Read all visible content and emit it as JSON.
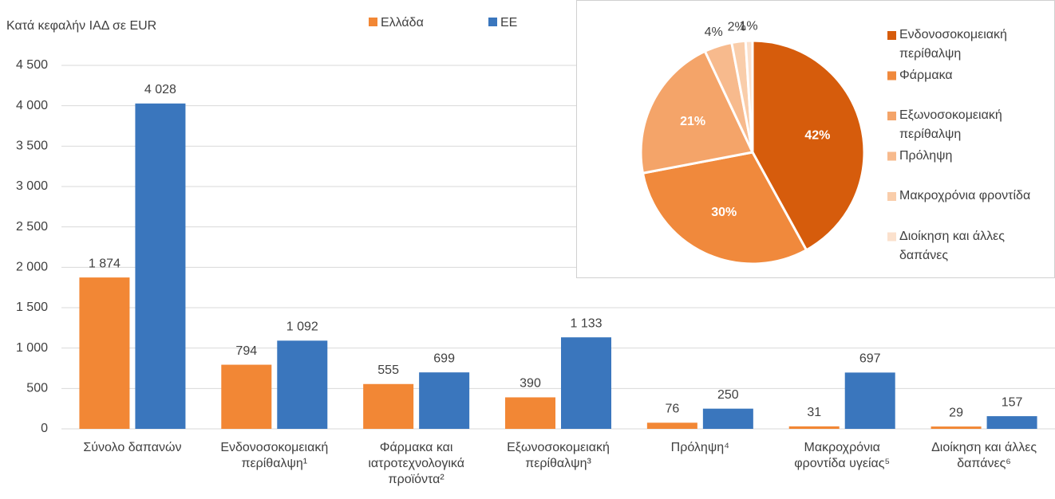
{
  "chart_data": [
    {
      "type": "bar",
      "y_axis_label": "Κατά κεφαλήν ΙΑΔ σε EUR",
      "categories": [
        "Σύνολο δαπανών",
        "Ενδονοσοκομειακή περίθαλψη¹",
        "Φάρμακα και ιατροτεχνολογικά προϊόντα²",
        "Εξωνοσοκομειακή περίθαλψη³",
        "Πρόληψη⁴",
        "Μακροχρόνια φροντίδα υγείας⁵",
        "Διοίκηση και άλλες δαπάνες⁶"
      ],
      "series": [
        {
          "name": "Ελλάδα",
          "color": "#f28735",
          "values": [
            1874,
            794,
            555,
            390,
            76,
            31,
            29
          ],
          "value_labels": [
            "1 874",
            "794",
            "555",
            "390",
            "76",
            "31",
            "29"
          ]
        },
        {
          "name": "ΕΕ",
          "color": "#3a76bd",
          "values": [
            4028,
            1092,
            699,
            1133,
            250,
            697,
            157
          ],
          "value_labels": [
            "4 028",
            "1 092",
            "699",
            "1 133",
            "250",
            "697",
            "157"
          ]
        }
      ],
      "ylim": [
        0,
        4500
      ],
      "yticks": [
        0,
        500,
        {
          "value": 1000,
          "label": "1 000"
        },
        {
          "value": 1500,
          "label": "1 500"
        },
        {
          "value": 2000,
          "label": "2 000"
        },
        {
          "value": 2500,
          "label": "2 500"
        },
        {
          "value": 3000,
          "label": "3 000"
        },
        {
          "value": 3500,
          "label": "3 500"
        },
        {
          "value": 4000,
          "label": "4 000"
        },
        {
          "value": 4500,
          "label": "4 500"
        }
      ],
      "grid": true
    },
    {
      "type": "pie",
      "categories": [
        "Ενδονοσοκομειακή περίθαλψη",
        "Φάρμακα",
        "Εξωνοσοκομειακή περίθαλψη",
        "Πρόληψη",
        "Μακροχρόνια φροντίδα",
        "Διοίκηση και άλλες δαπάνες"
      ],
      "values": [
        42,
        30,
        21,
        4,
        2,
        1
      ],
      "value_labels": [
        "42%",
        "30%",
        "21%",
        "4%",
        "2%",
        "1%"
      ],
      "colors": [
        "#d65c0c",
        "#f0893c",
        "#f4a469",
        "#f7ba8d",
        "#f9cdaa",
        "#fbe1cd"
      ]
    }
  ]
}
